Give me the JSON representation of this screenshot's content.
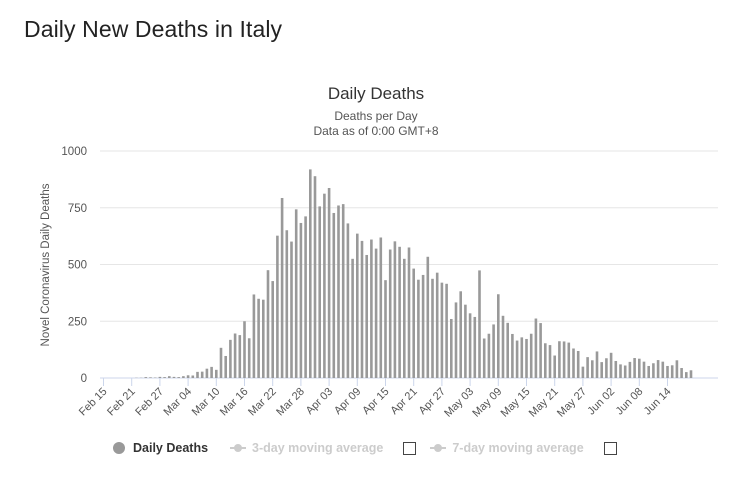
{
  "page_title": "Daily New Deaths in Italy",
  "legend": {
    "daily_label": "Daily Deaths",
    "avg3_label": "3-day moving average",
    "avg7_label": "7-day moving average"
  },
  "colors": {
    "bar": "#999999",
    "grid": "#e6e6e6",
    "legend_inactive": "#cccccc"
  },
  "chart_data": {
    "type": "bar",
    "title": "Daily Deaths",
    "subtitle_line1": "Deaths per Day",
    "subtitle_line2": "Data as of 0:00 GMT+8",
    "ylabel": "Novel Coronavirus Daily Deaths",
    "xlabel": "",
    "ylim": [
      0,
      1000
    ],
    "yticks": [
      0,
      250,
      500,
      750,
      1000
    ],
    "xtick_labels": [
      "Feb 15",
      "Feb 21",
      "Feb 27",
      "Mar 04",
      "Mar 10",
      "Mar 16",
      "Mar 22",
      "Mar 28",
      "Apr 03",
      "Apr 09",
      "Apr 15",
      "Apr 21",
      "Apr 27",
      "May 03",
      "May 09",
      "May 15",
      "May 21",
      "May 27",
      "Jun 02",
      "Jun 08",
      "Jun 14"
    ],
    "x_start": "Feb 15",
    "x_end": "Jun 16",
    "grid": true,
    "series": [
      {
        "name": "Daily Deaths",
        "values": [
          0,
          0,
          0,
          0,
          0,
          0,
          0,
          1,
          1,
          4,
          3,
          2,
          5,
          4,
          8,
          5,
          4,
          8,
          12,
          11,
          27,
          28,
          41,
          49,
          36,
          133,
          97,
          168,
          196,
          189,
          250,
          175,
          368,
          349,
          345,
          475,
          427,
          627,
          793,
          651,
          601,
          743,
          683,
          712,
          919,
          889,
          756,
          812,
          837,
          727,
          760,
          766,
          681,
          525,
          636,
          604,
          542,
          610,
          570,
          619,
          431,
          566,
          602,
          578,
          525,
          575,
          482,
          433,
          454,
          534,
          437,
          464,
          420,
          415,
          260,
          333,
          382,
          323,
          285,
          269,
          474,
          174,
          195,
          236,
          369,
          274,
          243,
          194,
          165,
          179,
          172,
          195,
          262,
          242,
          153,
          145,
          99,
          162,
          161,
          156,
          130,
          119,
          50,
          92,
          78,
          117,
          70,
          87,
          111,
          75,
          60,
          55,
          71,
          88,
          85,
          72,
          53,
          65,
          79,
          72,
          53,
          56,
          78,
          44,
          26,
          34
        ]
      }
    ]
  }
}
